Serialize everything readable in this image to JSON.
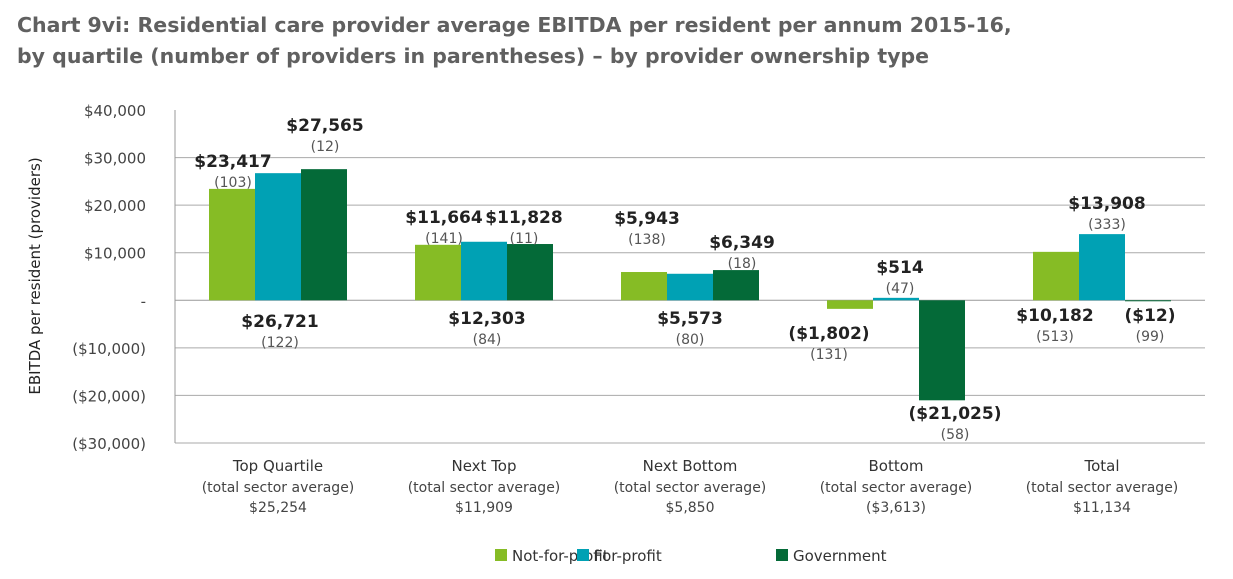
{
  "chart_data": {
    "type": "bar",
    "title": "Chart 9vi: Residential care provider average EBITDA per resident per annum 2015-16,",
    "subtitle": "by quartile (number of providers in parentheses) – by provider ownership type",
    "ylabel": "EBITDA per resident (providers)",
    "ylim": [
      -30000,
      40000
    ],
    "yticks": [
      40000,
      30000,
      20000,
      10000,
      0,
      -10000,
      -20000,
      -30000
    ],
    "ytick_labels": [
      "$40,000",
      "$30,000",
      "$20,000",
      "$10,000",
      "-",
      "($10,000)",
      "($20,000)",
      "($30,000)"
    ],
    "grid": true,
    "legend": "bottom",
    "categories": [
      "Top Quartile",
      "Next Top",
      "Next Bottom",
      "Bottom",
      "Total"
    ],
    "category_sublabel": "(total sector average)",
    "category_averages": [
      "$25,254",
      "$11,909",
      "$5,850",
      "($3,613)",
      "$11,134"
    ],
    "series": [
      {
        "name": "Not-for-profit",
        "color": "#86bc25",
        "values": [
          23417,
          11664,
          5943,
          -1802,
          10182
        ],
        "labels": [
          "$23,417",
          "$11,664",
          "$5,943",
          "($1,802)",
          "$10,182"
        ],
        "counts": [
          "(103)",
          "(141)",
          "(138)",
          "(131)",
          "(513)"
        ]
      },
      {
        "name": "For-profit",
        "color": "#00a1b4",
        "values": [
          26721,
          12303,
          5573,
          514,
          13908
        ],
        "labels": [
          "$26,721",
          "$12,303",
          "$5,573",
          "$514",
          "$13,908"
        ],
        "counts": [
          "(122)",
          "(84)",
          "(80)",
          "(47)",
          "(333)"
        ]
      },
      {
        "name": "Government",
        "color": "#046a38",
        "values": [
          27565,
          11828,
          6349,
          -21025,
          -12
        ],
        "labels": [
          "$27,565",
          "$11,828",
          "$6,349",
          "($21,025)",
          "($12)"
        ],
        "counts": [
          "(12)",
          "(11)",
          "(18)",
          "(58)",
          "(99)"
        ]
      }
    ]
  }
}
